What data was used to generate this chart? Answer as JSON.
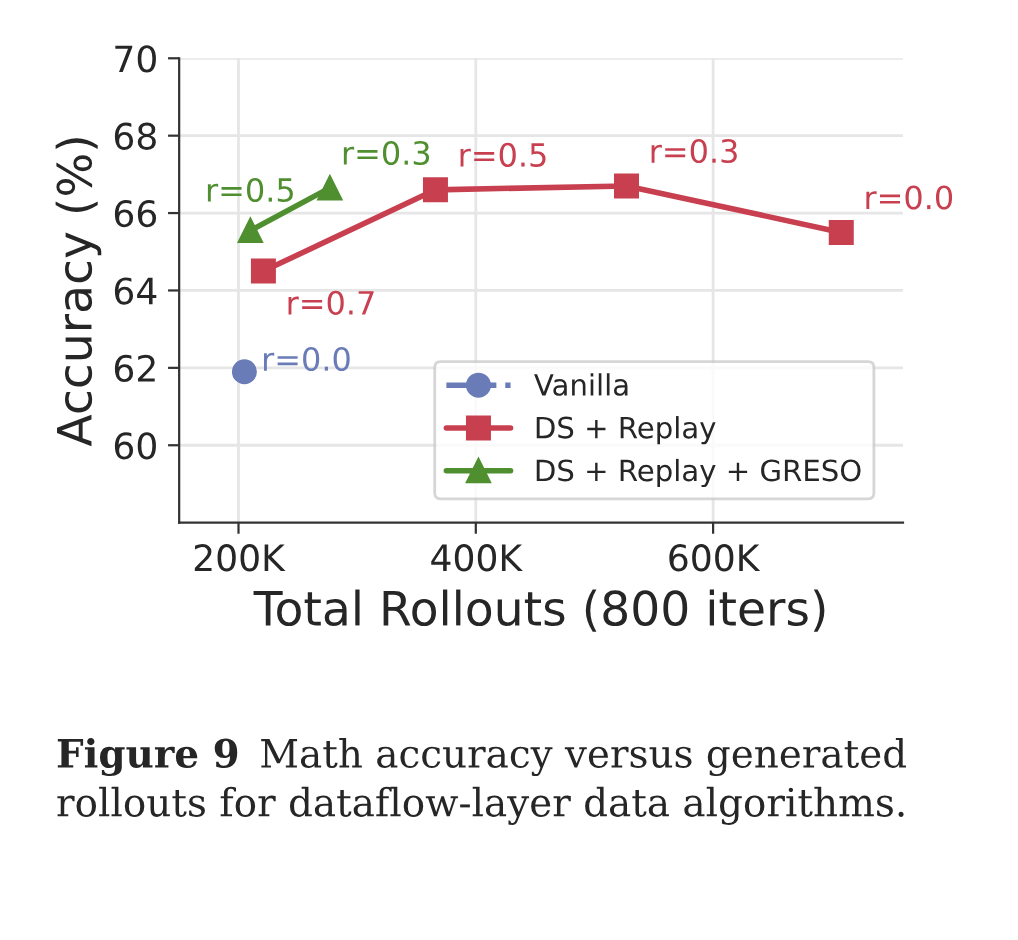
{
  "chart_data": {
    "type": "line",
    "xlabel": "Total Rollouts (800 iters)",
    "ylabel": "Accuracy (%)",
    "xlim": [
      150000,
      760000
    ],
    "xticks": [
      {
        "value": 200000,
        "label": "200K"
      },
      {
        "value": 400000,
        "label": "400K"
      },
      {
        "value": 600000,
        "label": "600K"
      }
    ],
    "ylim": [
      58,
      70
    ],
    "yticks": [
      60,
      62,
      64,
      66,
      68,
      70
    ],
    "grid": true,
    "legend": "bottom right",
    "series": [
      {
        "name": "Vanilla",
        "color": "#6a7cb8",
        "marker": "circle",
        "line_style": "dashed",
        "x": [
          205000
        ],
        "values": [
          61.9
        ]
      },
      {
        "name": "DS + Replay",
        "color": "#c8404f",
        "marker": "square",
        "line_style": "solid",
        "x": [
          221000,
          366000,
          527000,
          708000
        ],
        "values": [
          64.5,
          66.6,
          66.7,
          65.5
        ]
      },
      {
        "name": "DS + Replay + GRESO",
        "color": "#4f8f2f",
        "marker": "triangle",
        "line_style": "solid",
        "x": [
          210000,
          277000
        ],
        "values": [
          65.55,
          66.65
        ]
      }
    ],
    "annotations": [
      {
        "text": "r=0.5",
        "x": 210000,
        "y": 65.55
      },
      {
        "text": "r=0.3",
        "x": 277000,
        "y": 66.65
      },
      {
        "text": "r=0.7",
        "x": 221000,
        "y": 64.5
      },
      {
        "text": "r=0.5",
        "x": 366000,
        "y": 66.6
      },
      {
        "text": "r=0.3",
        "x": 527000,
        "y": 66.7
      },
      {
        "text": "r=0.0",
        "x": 708000,
        "y": 65.5
      },
      {
        "text": "r=0.0",
        "x": 205000,
        "y": 61.9
      },
      "Figure 9",
      "Math accuracy versus generated rollouts for dataflow-layer data algorithms."
    ]
  }
}
